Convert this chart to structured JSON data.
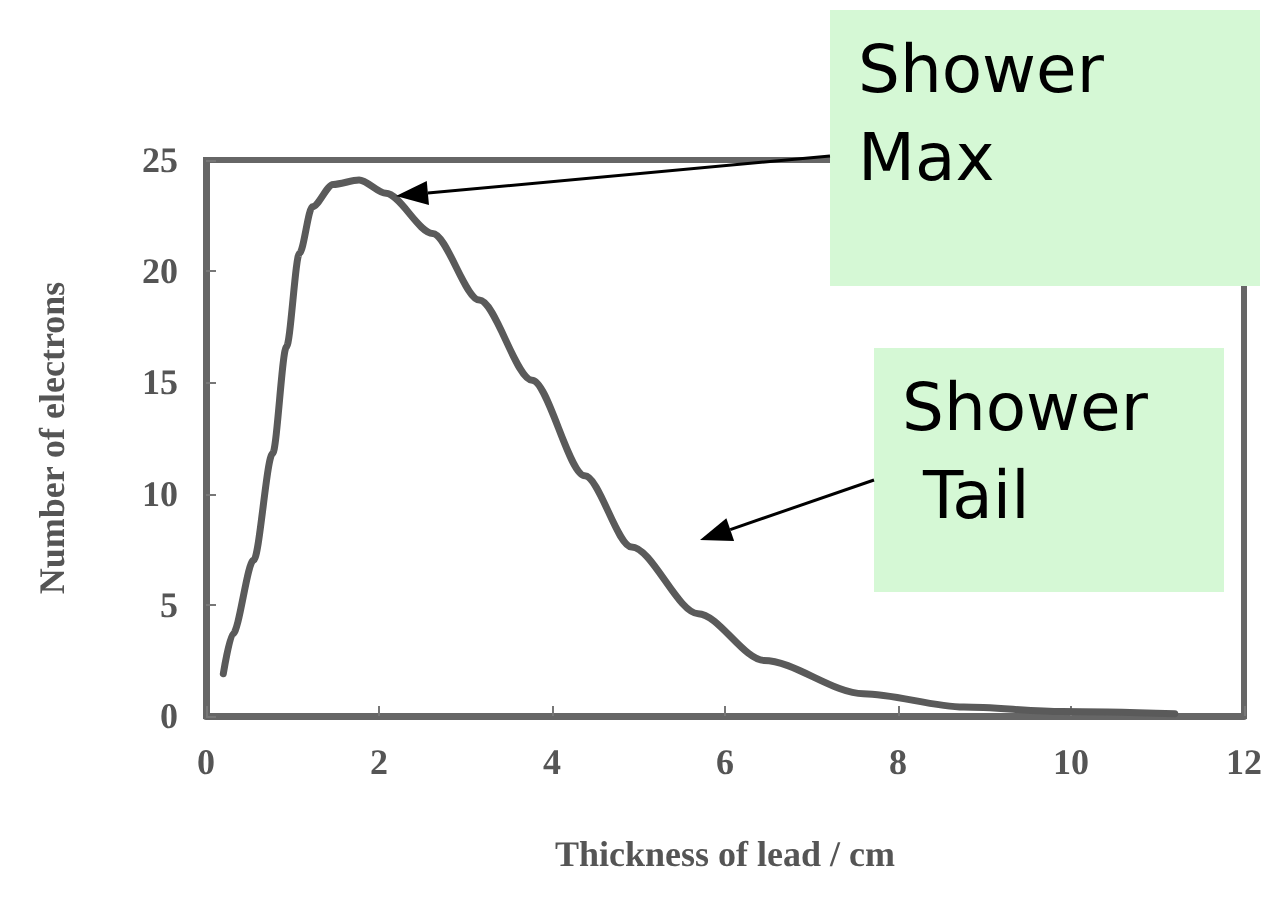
{
  "chart_data": {
    "type": "line",
    "xlabel": "Thickness of lead / cm",
    "ylabel": "Number of electrons",
    "x": [
      0.2,
      0.31,
      0.55,
      0.77,
      0.93,
      1.08,
      1.23,
      1.47,
      1.77,
      2.08,
      2.62,
      3.16,
      3.77,
      4.38,
      4.92,
      5.69,
      6.45,
      7.6,
      8.76,
      9.9,
      11.2
    ],
    "series": [
      {
        "color": "#5a5a5a",
        "values": [
          1.9,
          3.7,
          7,
          11.8,
          16.6,
          20.8,
          22.9,
          23.9,
          24.1,
          23.5,
          21.7,
          18.7,
          15.1,
          10.8,
          7.6,
          4.6,
          2.5,
          1.0,
          0.4,
          0.2,
          0.1
        ]
      }
    ],
    "xlim": [
      0,
      12
    ],
    "xticks": [
      0,
      2,
      4,
      6,
      8,
      10,
      12
    ],
    "ylim": [
      0,
      25
    ],
    "yticks": [
      0,
      5,
      10,
      15,
      20,
      25
    ],
    "grid": false,
    "marker": "none",
    "line_style": "solid",
    "annotations": [
      "Shower\nMax",
      "Shower\n Tail"
    ]
  }
}
